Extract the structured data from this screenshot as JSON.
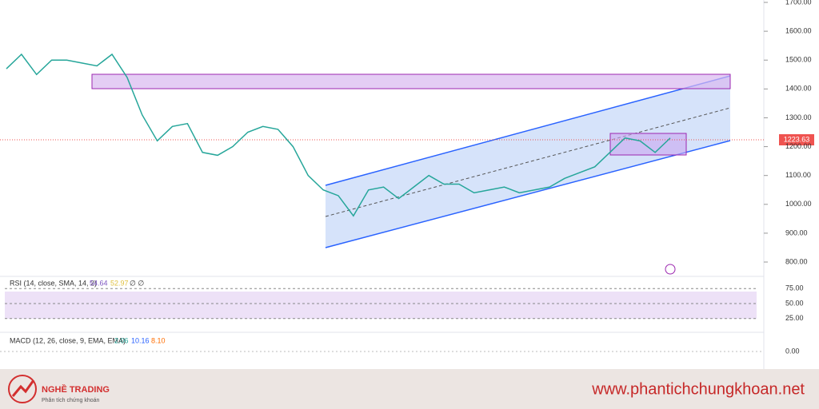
{
  "price_chart": {
    "type": "line",
    "color": "#26a69a",
    "values": [
      1470,
      1520,
      1450,
      1500,
      1500,
      1490,
      1480,
      1520,
      1440,
      1310,
      1220,
      1270,
      1280,
      1180,
      1170,
      1200,
      1250,
      1270,
      1260,
      1200,
      1100,
      1050,
      1030,
      960,
      1050,
      1060,
      1020,
      1060,
      1100,
      1070,
      1070,
      1040,
      1050,
      1060,
      1040,
      1050,
      1060,
      1090,
      1110,
      1130,
      1180,
      1230,
      1220,
      1180,
      1230
    ],
    "ylim": [
      753,
      1700
    ],
    "yticks": [
      {
        "value": 1700,
        "label": "1700.00"
      },
      {
        "value": 1600,
        "label": "1600.00"
      },
      {
        "value": 1500,
        "label": "1500.00"
      },
      {
        "value": 1400,
        "label": "1400.00"
      },
      {
        "value": 1300,
        "label": "1300.00"
      },
      {
        "value": 1200,
        "label": "1200.00"
      },
      {
        "value": 1100,
        "label": "1100.00"
      },
      {
        "value": 1000,
        "label": "1000.00"
      },
      {
        "value": 900,
        "label": "900.00"
      },
      {
        "value": 800,
        "label": "800.00"
      }
    ],
    "last_price": 1223.63
  },
  "rsi": {
    "title": "RSI (14, close, SMA, 14, 2)",
    "values_text": [
      "54.64",
      "52.97",
      "∅ ∅"
    ],
    "ylim": [
      10,
      90
    ],
    "yticks": [
      {
        "value": 75,
        "label": "75.00"
      },
      {
        "value": 50,
        "label": "50.00"
      },
      {
        "value": 25,
        "label": "25.00"
      }
    ]
  },
  "macd": {
    "title": "MACD (12, 26, close, 9, EMA, EMA)",
    "values_text": [
      "2.06",
      "10.16",
      "8.10"
    ],
    "yticks": [
      {
        "value": 0,
        "label": "0.00"
      }
    ]
  },
  "footer": {
    "brand": "NGHỀ TRADING",
    "tagline": "Phân tích chứng khoán",
    "website": "www.phantichchungkhoan.net"
  }
}
